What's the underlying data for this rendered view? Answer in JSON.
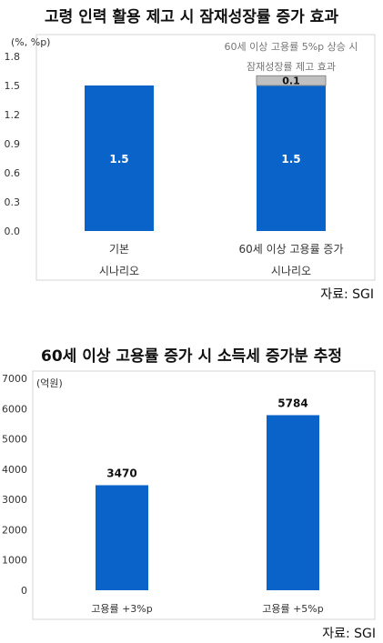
{
  "charts": [
    {
      "title": "고령 인력 활용 제고 시 잠재성장률 증가 효과",
      "source": "자료: SGI",
      "chart_data": {
        "type": "bar",
        "stacked": true,
        "unit_label": "(%, %p)",
        "ylim": [
          0,
          1.8
        ],
        "yticks": [
          "0.0",
          "0.3",
          "0.6",
          "0.9",
          "1.2",
          "1.5",
          "1.8"
        ],
        "categories": [
          {
            "line1": "기본",
            "line2": "시나리오"
          },
          {
            "line1": "60세 이상 고용률 증가",
            "line2": "시나리오"
          }
        ],
        "series": [
          {
            "values": [
              1.5,
              1.5
            ],
            "value_labels": [
              "1.5",
              "1.5"
            ],
            "color": "#0a63c9"
          },
          {
            "values": [
              0,
              0.1
            ],
            "value_labels": [
              "",
              "0.1"
            ],
            "color": "#c0c0c0"
          }
        ],
        "annotation": {
          "line1": "60세 이상 고용률 5%p 상승 시",
          "line2": "잠재성장률 제고 효과"
        },
        "grid": false
      }
    },
    {
      "title": "60세 이상 고용률 증가 시 소득세 증가분 추정",
      "source": "자료: SGI",
      "chart_data": {
        "type": "bar",
        "unit_label": "(억원)",
        "ylim": [
          0,
          7000
        ],
        "yticks": [
          "0",
          "1000",
          "2000",
          "3000",
          "4000",
          "5000",
          "6000",
          "7000"
        ],
        "categories": [
          "고용률 +3%p",
          "고용률 +5%p"
        ],
        "values": [
          3470,
          5784
        ],
        "value_labels": [
          "3470",
          "5784"
        ],
        "color": "#0a63c9",
        "grid": false
      }
    }
  ]
}
